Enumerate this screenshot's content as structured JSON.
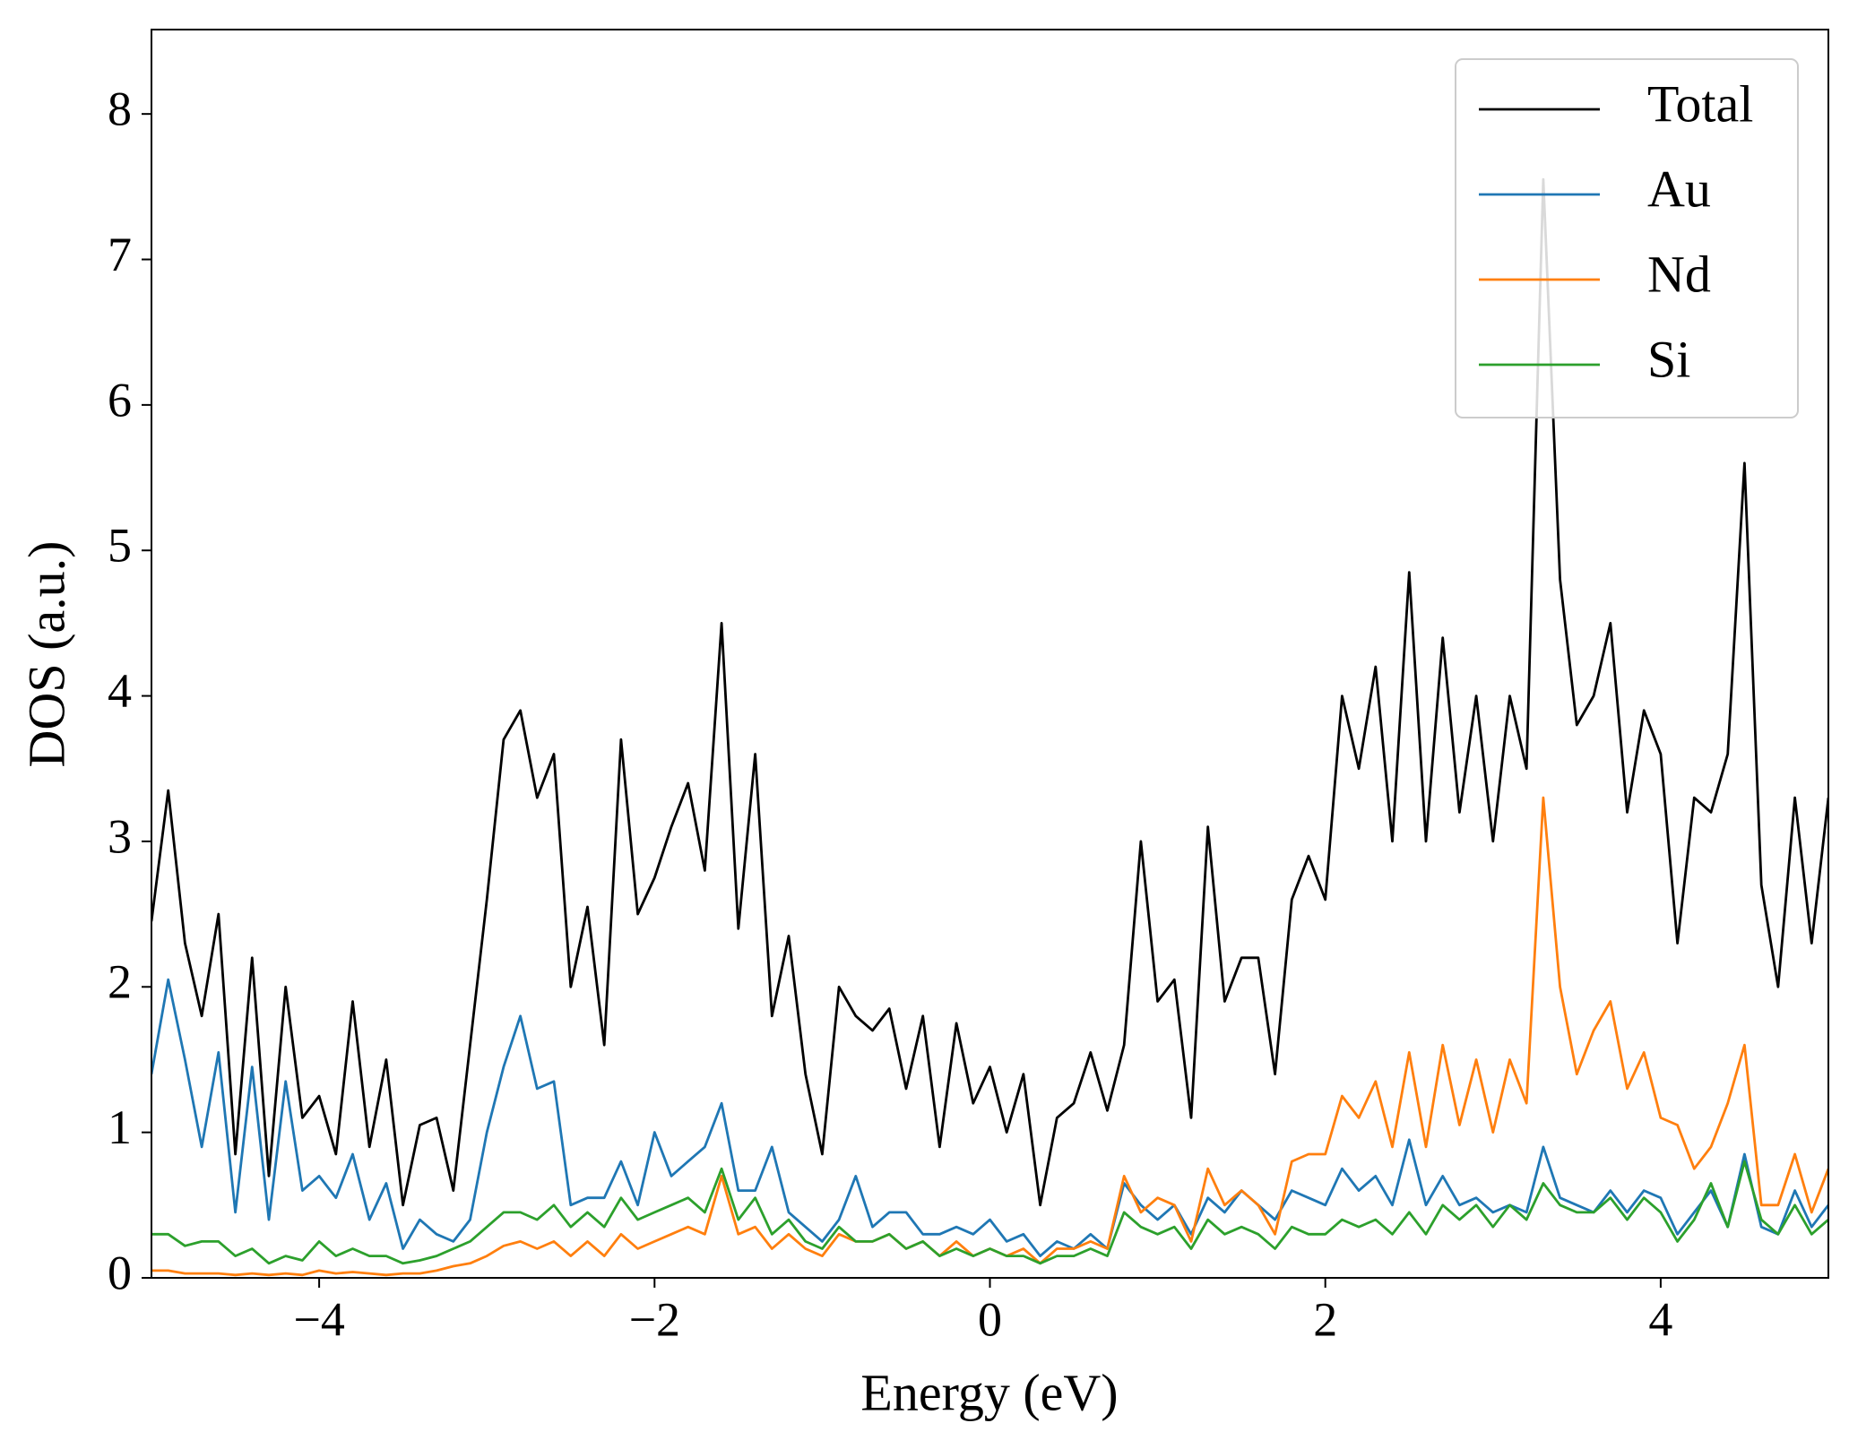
{
  "chart_data": {
    "type": "line",
    "xlabel": "Energy (eV)",
    "ylabel": "DOS (a.u.)",
    "xlim": [
      -5,
      5
    ],
    "ylim": [
      0,
      8.58
    ],
    "xticks": [
      {
        "value": -4,
        "label": "−4"
      },
      {
        "value": -2,
        "label": "−2"
      },
      0,
      2,
      4
    ],
    "yticks": [
      0,
      1,
      2,
      3,
      4,
      5,
      6,
      7,
      8
    ],
    "legend": "upper right",
    "x": [
      -5.0,
      -4.9,
      -4.8,
      -4.7,
      -4.6,
      -4.5,
      -4.4,
      -4.3,
      -4.2,
      -4.1,
      -4.0,
      -3.9,
      -3.8,
      -3.7,
      -3.6,
      -3.5,
      -3.4,
      -3.3,
      -3.2,
      -3.1,
      -3.0,
      -2.9,
      -2.8,
      -2.7,
      -2.6,
      -2.5,
      -2.4,
      -2.3,
      -2.2,
      -2.1,
      -2.0,
      -1.9,
      -1.8,
      -1.7,
      -1.6,
      -1.5,
      -1.4,
      -1.3,
      -1.2,
      -1.1,
      -1.0,
      -0.9,
      -0.8,
      -0.7,
      -0.6,
      -0.5,
      -0.4,
      -0.3,
      -0.2,
      -0.1,
      0.0,
      0.1,
      0.2,
      0.3,
      0.4,
      0.5,
      0.6,
      0.7,
      0.8,
      0.9,
      1.0,
      1.1,
      1.2,
      1.3,
      1.4,
      1.5,
      1.6,
      1.7,
      1.8,
      1.9,
      2.0,
      2.1,
      2.2,
      2.3,
      2.4,
      2.5,
      2.6,
      2.7,
      2.8,
      2.9,
      3.0,
      3.1,
      3.2,
      3.3,
      3.4,
      3.5,
      3.6,
      3.7,
      3.8,
      3.9,
      4.0,
      4.1,
      4.2,
      4.3,
      4.4,
      4.5,
      4.6,
      4.7,
      4.8,
      4.9,
      5.0
    ],
    "series": [
      {
        "name": "Total",
        "color": "#000000",
        "values": [
          2.45,
          3.35,
          2.3,
          1.8,
          2.5,
          0.85,
          2.2,
          0.7,
          2.0,
          1.1,
          1.25,
          0.85,
          1.9,
          0.9,
          1.5,
          0.5,
          1.05,
          1.1,
          0.6,
          1.6,
          2.6,
          3.7,
          3.9,
          3.3,
          3.6,
          2.0,
          2.55,
          1.6,
          3.7,
          2.5,
          2.75,
          3.1,
          3.4,
          2.8,
          4.5,
          2.4,
          3.6,
          1.8,
          2.35,
          1.4,
          0.85,
          2.0,
          1.8,
          1.7,
          1.85,
          1.3,
          1.8,
          0.9,
          1.75,
          1.2,
          1.45,
          1.0,
          1.4,
          0.5,
          1.1,
          1.2,
          1.55,
          1.15,
          1.6,
          3.0,
          1.9,
          2.05,
          1.1,
          3.1,
          1.9,
          2.2,
          2.2,
          1.4,
          2.6,
          2.9,
          2.6,
          4.0,
          3.5,
          4.2,
          3.0,
          4.85,
          3.0,
          4.4,
          3.2,
          4.0,
          3.0,
          4.0,
          3.5,
          7.55,
          4.8,
          3.8,
          4.0,
          4.5,
          3.2,
          3.9,
          3.6,
          2.3,
          3.3,
          3.2,
          3.6,
          5.6,
          2.7,
          2.0,
          3.3,
          2.3,
          3.3
        ]
      },
      {
        "name": "Au",
        "color": "#1f77b4",
        "values": [
          1.4,
          2.05,
          1.5,
          0.9,
          1.55,
          0.45,
          1.45,
          0.4,
          1.35,
          0.6,
          0.7,
          0.55,
          0.85,
          0.4,
          0.65,
          0.2,
          0.4,
          0.3,
          0.25,
          0.4,
          1.0,
          1.45,
          1.8,
          1.3,
          1.35,
          0.5,
          0.55,
          0.55,
          0.8,
          0.5,
          1.0,
          0.7,
          0.8,
          0.9,
          1.2,
          0.6,
          0.6,
          0.9,
          0.45,
          0.35,
          0.25,
          0.4,
          0.7,
          0.35,
          0.45,
          0.45,
          0.3,
          0.3,
          0.35,
          0.3,
          0.4,
          0.25,
          0.3,
          0.15,
          0.25,
          0.2,
          0.3,
          0.2,
          0.65,
          0.5,
          0.4,
          0.5,
          0.3,
          0.55,
          0.45,
          0.6,
          0.5,
          0.4,
          0.6,
          0.55,
          0.5,
          0.75,
          0.6,
          0.7,
          0.5,
          0.95,
          0.5,
          0.7,
          0.5,
          0.55,
          0.45,
          0.5,
          0.45,
          0.9,
          0.55,
          0.5,
          0.45,
          0.6,
          0.45,
          0.6,
          0.55,
          0.3,
          0.45,
          0.6,
          0.35,
          0.85,
          0.35,
          0.3,
          0.6,
          0.35,
          0.5
        ]
      },
      {
        "name": "Nd",
        "color": "#ff7f0e",
        "values": [
          0.05,
          0.05,
          0.03,
          0.03,
          0.03,
          0.02,
          0.03,
          0.02,
          0.03,
          0.02,
          0.05,
          0.03,
          0.04,
          0.03,
          0.02,
          0.03,
          0.03,
          0.05,
          0.08,
          0.1,
          0.15,
          0.22,
          0.25,
          0.2,
          0.25,
          0.15,
          0.25,
          0.15,
          0.3,
          0.2,
          0.25,
          0.3,
          0.35,
          0.3,
          0.7,
          0.3,
          0.35,
          0.2,
          0.3,
          0.2,
          0.15,
          0.3,
          0.25,
          0.25,
          0.3,
          0.2,
          0.25,
          0.15,
          0.25,
          0.15,
          0.2,
          0.15,
          0.2,
          0.1,
          0.2,
          0.2,
          0.25,
          0.2,
          0.7,
          0.45,
          0.55,
          0.5,
          0.25,
          0.75,
          0.5,
          0.6,
          0.5,
          0.3,
          0.8,
          0.85,
          0.85,
          1.25,
          1.1,
          1.35,
          0.9,
          1.55,
          0.9,
          1.6,
          1.05,
          1.5,
          1.0,
          1.5,
          1.2,
          3.3,
          2.0,
          1.4,
          1.7,
          1.9,
          1.3,
          1.55,
          1.1,
          1.05,
          0.75,
          0.9,
          1.2,
          1.6,
          0.5,
          0.5,
          0.85,
          0.45,
          0.75
        ]
      },
      {
        "name": "Si",
        "color": "#2ca02c",
        "values": [
          0.3,
          0.3,
          0.22,
          0.25,
          0.25,
          0.15,
          0.2,
          0.1,
          0.15,
          0.12,
          0.25,
          0.15,
          0.2,
          0.15,
          0.15,
          0.1,
          0.12,
          0.15,
          0.2,
          0.25,
          0.35,
          0.45,
          0.45,
          0.4,
          0.5,
          0.35,
          0.45,
          0.35,
          0.55,
          0.4,
          0.45,
          0.5,
          0.55,
          0.45,
          0.75,
          0.4,
          0.55,
          0.3,
          0.4,
          0.25,
          0.2,
          0.35,
          0.25,
          0.25,
          0.3,
          0.2,
          0.25,
          0.15,
          0.2,
          0.15,
          0.2,
          0.15,
          0.15,
          0.1,
          0.15,
          0.15,
          0.2,
          0.15,
          0.45,
          0.35,
          0.3,
          0.35,
          0.2,
          0.4,
          0.3,
          0.35,
          0.3,
          0.2,
          0.35,
          0.3,
          0.3,
          0.4,
          0.35,
          0.4,
          0.3,
          0.45,
          0.3,
          0.5,
          0.4,
          0.5,
          0.35,
          0.5,
          0.4,
          0.65,
          0.5,
          0.45,
          0.45,
          0.55,
          0.4,
          0.55,
          0.45,
          0.25,
          0.4,
          0.65,
          0.35,
          0.8,
          0.4,
          0.3,
          0.5,
          0.3,
          0.4
        ]
      }
    ]
  }
}
